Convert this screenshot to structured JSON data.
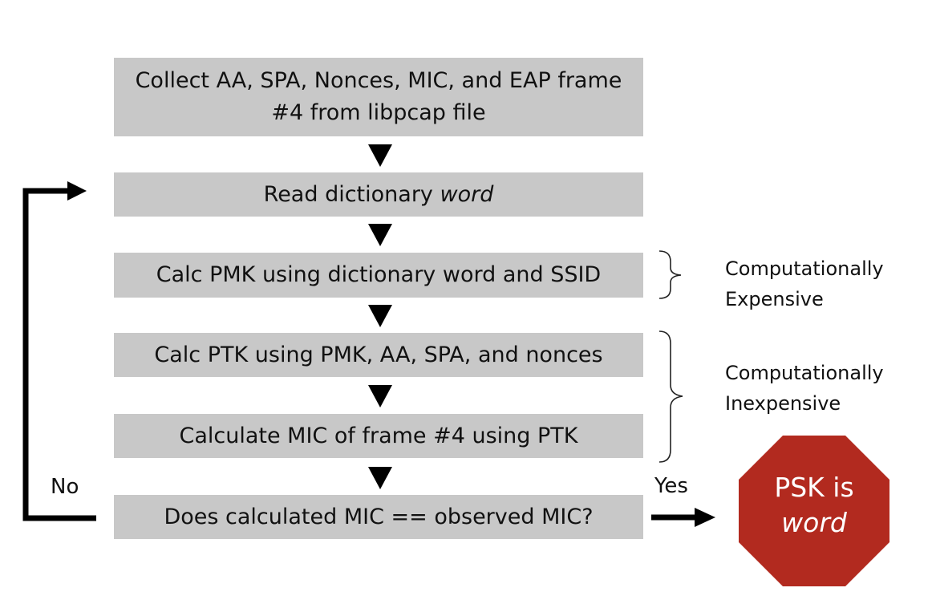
{
  "steps": {
    "collect_line1": "Collect AA, SPA, Nonces, MIC, and EAP frame",
    "collect_line2": "#4 from libpcap file",
    "read_prefix": "Read dictionary",
    "read_word": "word",
    "calc_pmk": "Calc PMK using dictionary word and SSID",
    "calc_ptk": "Calc PTK using PMK, AA, SPA, and nonces",
    "calc_mic": "Calculate MIC of frame #4 using PTK",
    "compare": "Does calculated MIC == observed MIC?"
  },
  "annotations": {
    "expensive_line1": "Computationally",
    "expensive_line2": "Expensive",
    "inexpensive_line1": "Computationally",
    "inexpensive_line2": "Inexpensive"
  },
  "branches": {
    "no": "No",
    "yes": "Yes"
  },
  "result": {
    "line1": "PSK is",
    "word": "word",
    "color": "#b22a1f"
  }
}
